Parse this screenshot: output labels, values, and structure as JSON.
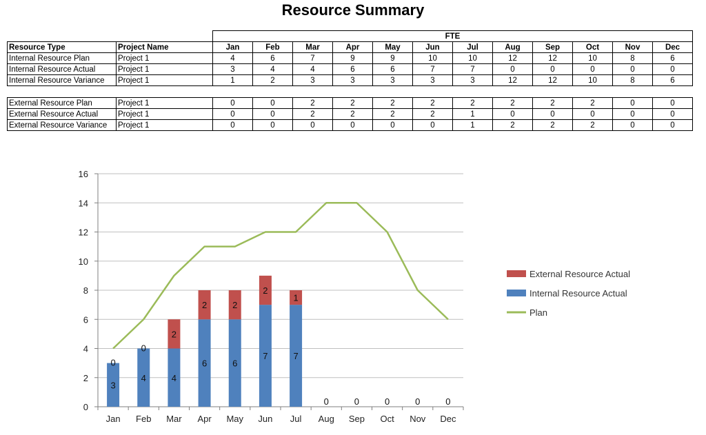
{
  "title": "Resource Summary",
  "table": {
    "fte_label": "FTE",
    "headers": {
      "type": "Resource Type",
      "project": "Project Name"
    },
    "months": [
      "Jan",
      "Feb",
      "Mar",
      "Apr",
      "May",
      "Jun",
      "Jul",
      "Aug",
      "Sep",
      "Oct",
      "Nov",
      "Dec"
    ],
    "internal_rows": [
      {
        "type": "Internal Resource Plan",
        "project": "Project 1",
        "values": [
          4,
          6,
          7,
          9,
          9,
          10,
          10,
          12,
          12,
          10,
          8,
          6
        ]
      },
      {
        "type": "Internal Resource Actual",
        "project": "Project 1",
        "values": [
          3,
          4,
          4,
          6,
          6,
          7,
          7,
          0,
          0,
          0,
          0,
          0
        ]
      },
      {
        "type": "Internal Resource Variance",
        "project": "Project 1",
        "values": [
          1,
          2,
          3,
          3,
          3,
          3,
          3,
          12,
          12,
          10,
          8,
          6
        ]
      }
    ],
    "external_rows": [
      {
        "type": "External Resource Plan",
        "project": "Project 1",
        "values": [
          0,
          0,
          2,
          2,
          2,
          2,
          2,
          2,
          2,
          2,
          0,
          0
        ]
      },
      {
        "type": "External Resource Actual",
        "project": "Project 1",
        "values": [
          0,
          0,
          2,
          2,
          2,
          2,
          1,
          0,
          0,
          0,
          0,
          0
        ]
      },
      {
        "type": "External Resource Variance",
        "project": "Project 1",
        "values": [
          0,
          0,
          0,
          0,
          0,
          0,
          1,
          2,
          2,
          2,
          0,
          0
        ]
      }
    ]
  },
  "chart_data": {
    "type": "bar",
    "stacked": true,
    "categories": [
      "Jan",
      "Feb",
      "Mar",
      "Apr",
      "May",
      "Jun",
      "Jul",
      "Aug",
      "Sep",
      "Oct",
      "Nov",
      "Dec"
    ],
    "series": [
      {
        "name": "Internal Resource Actual",
        "kind": "bar",
        "color": "#4f81bd",
        "values": [
          3,
          4,
          4,
          6,
          6,
          7,
          7,
          0,
          0,
          0,
          0,
          0
        ]
      },
      {
        "name": "External Resource Actual",
        "kind": "bar",
        "color": "#c0504d",
        "values": [
          0,
          0,
          2,
          2,
          2,
          2,
          1,
          0,
          0,
          0,
          0,
          0
        ]
      },
      {
        "name": "Plan",
        "kind": "line",
        "color": "#9bbb59",
        "values": [
          4,
          6,
          9,
          11,
          11,
          12,
          12,
          14,
          14,
          12,
          8,
          6
        ]
      }
    ],
    "ylim": [
      0,
      16
    ],
    "yticks": [
      0,
      2,
      4,
      6,
      8,
      10,
      12,
      14,
      16
    ],
    "grid": true,
    "legend": "right",
    "legend_order": [
      "External Resource Actual",
      "Internal Resource Actual",
      "Plan"
    ],
    "title": "",
    "xlabel": "",
    "ylabel": ""
  }
}
